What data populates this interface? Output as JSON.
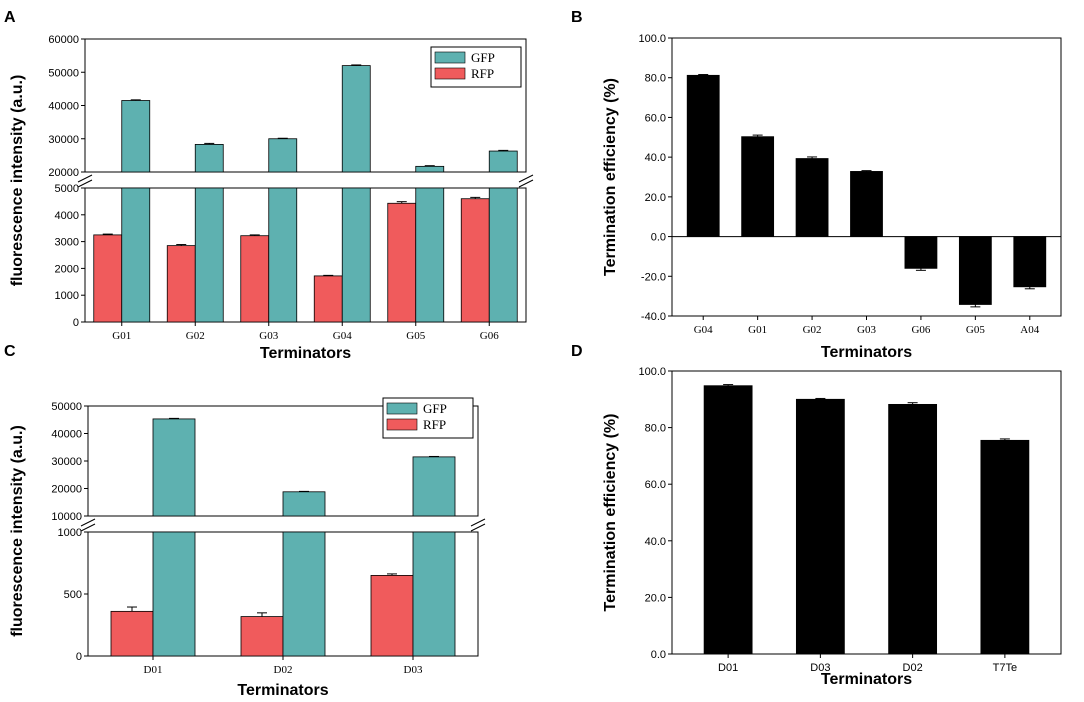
{
  "colors": {
    "gfp": "#5eb1b0",
    "rfp": "#f05b5c",
    "black": "#000000"
  },
  "chart_data": [
    {
      "panel": "A",
      "type": "bar",
      "title": "",
      "xlabel": "Terminators",
      "ylabel": "fluorescence intensity (a.u.)",
      "categories": [
        "G01",
        "G02",
        "G03",
        "G04",
        "G05",
        "G06"
      ],
      "series": [
        {
          "name": "RFP",
          "values": [
            3250,
            2850,
            3220,
            1720,
            4430,
            4600
          ],
          "errors": [
            30,
            40,
            30,
            20,
            60,
            50
          ]
        },
        {
          "name": "GFP",
          "values": [
            41500,
            28300,
            30000,
            52000,
            21700,
            26300
          ],
          "errors": [
            200,
            300,
            150,
            200,
            200,
            200
          ]
        }
      ],
      "axis_break": {
        "lower": [
          0,
          5000
        ],
        "upper": [
          20000,
          60000
        ]
      },
      "lower_ticks": [
        "0",
        "1000",
        "2000",
        "3000",
        "4000",
        "5000"
      ],
      "upper_ticks": [
        "20000",
        "30000",
        "40000",
        "50000",
        "60000"
      ],
      "legend": [
        "GFP",
        "RFP"
      ],
      "legend_position": "top-right"
    },
    {
      "panel": "B",
      "type": "bar",
      "title": "",
      "xlabel": "Terminators",
      "ylabel": "Termination efficiency (%)",
      "categories": [
        "G04",
        "G01",
        "G02",
        "G03",
        "G06",
        "G05",
        "A04"
      ],
      "values": [
        81.2,
        50.3,
        39.3,
        32.8,
        -16.0,
        -34.2,
        -25.3
      ],
      "errors": [
        0.4,
        0.8,
        0.8,
        0.4,
        1.0,
        1.2,
        1.0
      ],
      "ylim": [
        -40,
        100
      ],
      "ticks": [
        "100.0",
        "80.0",
        "60.0",
        "40.0",
        "20.0",
        "0.0",
        "-20.0",
        "-40.0"
      ]
    },
    {
      "panel": "C",
      "type": "bar",
      "title": "",
      "xlabel": "Terminators",
      "ylabel": "fluorescence intensity (a.u.)",
      "categories": [
        "D01",
        "D02",
        "D03"
      ],
      "series": [
        {
          "name": "RFP",
          "values": [
            360,
            318,
            650
          ],
          "errors": [
            35,
            30,
            12
          ]
        },
        {
          "name": "GFP",
          "values": [
            45300,
            18800,
            31500
          ],
          "errors": [
            200,
            150,
            150
          ]
        }
      ],
      "axis_break": {
        "lower": [
          0,
          1000
        ],
        "upper": [
          10000,
          50000
        ]
      },
      "lower_ticks": [
        "0",
        "500",
        "1000"
      ],
      "upper_ticks": [
        "10000",
        "20000",
        "30000",
        "40000",
        "50000"
      ],
      "legend": [
        "GFP",
        "RFP"
      ],
      "legend_position": "top-right"
    },
    {
      "panel": "D",
      "type": "bar",
      "title": "",
      "xlabel": "Terminators",
      "ylabel": "Termination efficiency (%)",
      "categories": [
        "D01",
        "D03",
        "D02",
        "T7Te"
      ],
      "values": [
        94.8,
        90.0,
        88.2,
        75.5
      ],
      "errors": [
        0.4,
        0.3,
        0.6,
        0.5
      ],
      "ylim": [
        0,
        100
      ],
      "ticks": [
        "100.0",
        "80.0",
        "60.0",
        "40.0",
        "20.0",
        "0.0"
      ]
    }
  ]
}
